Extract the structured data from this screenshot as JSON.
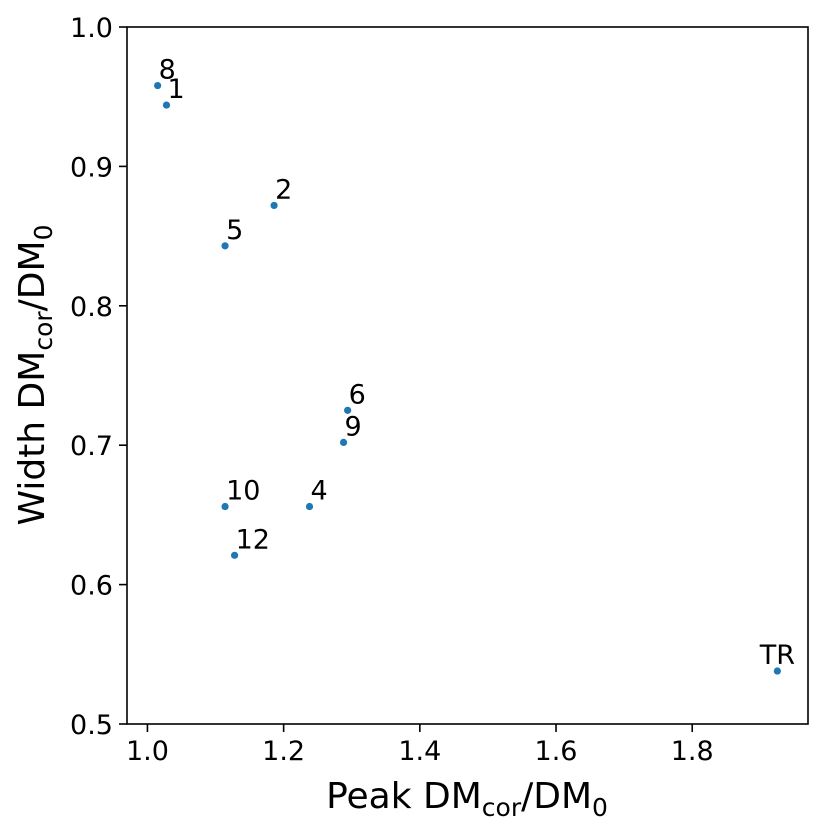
{
  "chart_data": {
    "type": "scatter",
    "title": "",
    "xlabel": {
      "base": "Peak DM",
      "sub": "cor",
      "mid": "/DM",
      "sub2": "0"
    },
    "ylabel": {
      "base": "Width DM",
      "sub": "cor",
      "mid": "/DM",
      "sub2": "0"
    },
    "xlim": [
      0.97,
      1.97
    ],
    "ylim": [
      0.5,
      1.0
    ],
    "xticks": [
      1.0,
      1.2,
      1.4,
      1.6,
      1.8
    ],
    "xtick_labels": [
      "1.0",
      "1.2",
      "1.4",
      "1.6",
      "1.8"
    ],
    "yticks": [
      0.5,
      0.6,
      0.7,
      0.8,
      0.9,
      1.0
    ],
    "ytick_labels": [
      "0.5",
      "0.6",
      "0.7",
      "0.8",
      "0.9",
      "1.0"
    ],
    "grid": false,
    "marker_color": "#1f77b4",
    "points": [
      {
        "label": "8",
        "x": 1.015,
        "y": 0.958
      },
      {
        "label": "1",
        "x": 1.028,
        "y": 0.944
      },
      {
        "label": "2",
        "x": 1.186,
        "y": 0.872
      },
      {
        "label": "5",
        "x": 1.114,
        "y": 0.843
      },
      {
        "label": "6",
        "x": 1.294,
        "y": 0.725
      },
      {
        "label": "9",
        "x": 1.288,
        "y": 0.702
      },
      {
        "label": "10",
        "x": 1.114,
        "y": 0.656
      },
      {
        "label": "4",
        "x": 1.238,
        "y": 0.656
      },
      {
        "label": "12",
        "x": 1.128,
        "y": 0.621
      },
      {
        "label": "TR",
        "x": 1.925,
        "y": 0.538
      }
    ]
  }
}
